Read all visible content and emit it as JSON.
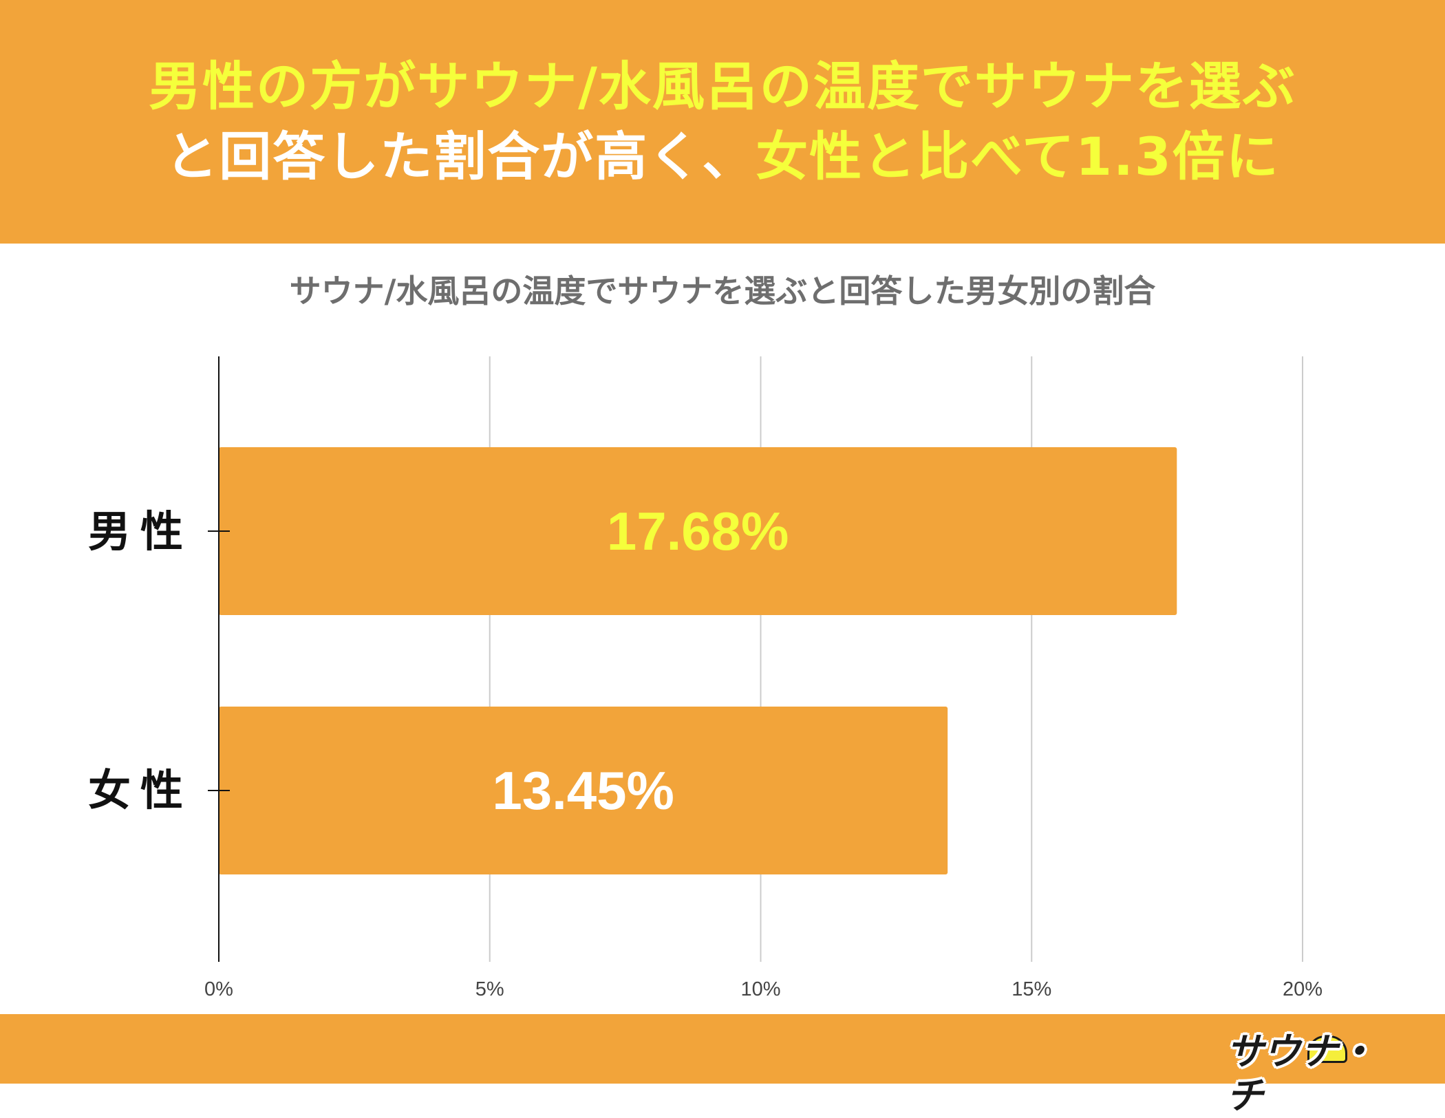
{
  "header": {
    "line1": "男性の方がサウナ/水風呂の温度でサウナを選ぶ",
    "line2_white": "と回答した割合が高く、",
    "line2_yellow": "女性と比べて1.3倍に"
  },
  "chart_data": {
    "type": "bar",
    "orientation": "horizontal",
    "title": "サウナ/水風呂の温度でサウナを選ぶと回答した男女別の割合",
    "categories": [
      "男性",
      "女性"
    ],
    "values": [
      17.68,
      13.45
    ],
    "value_labels": [
      "17.68%",
      "13.45%"
    ],
    "xlim": [
      0,
      20
    ],
    "xticks": [
      0,
      5,
      10,
      15,
      20
    ],
    "xtick_labels": [
      "0%",
      "5%",
      "10%",
      "15%",
      "20%"
    ],
    "grid": true,
    "xlabel": "",
    "ylabel": "",
    "colors": {
      "bar": "#f2a43a",
      "label_highlight": "#f5ff3b",
      "label_default": "#ffffff",
      "grid": "#cccccc"
    }
  },
  "logo": {
    "text": "サウナ・チ",
    "icon": "sauna-mascot-icon"
  }
}
